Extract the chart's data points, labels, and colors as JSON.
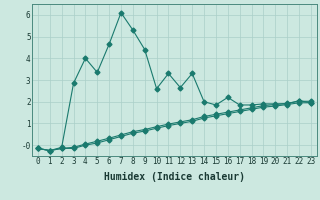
{
  "title": "",
  "xlabel": "Humidex (Indice chaleur)",
  "ylabel": "",
  "line_color": "#1a7a6e",
  "background_color": "#cce8e0",
  "grid_color": "#aacfc8",
  "series1_x": [
    0,
    1,
    2,
    3,
    4,
    5,
    6,
    7,
    8,
    9,
    10,
    11,
    12,
    13,
    14,
    15,
    16,
    17,
    18,
    19,
    20,
    21,
    22,
    23
  ],
  "series1_y": [
    -0.15,
    -0.25,
    -0.1,
    2.85,
    4.0,
    3.35,
    4.65,
    6.1,
    5.3,
    4.4,
    2.6,
    3.3,
    2.65,
    3.3,
    2.0,
    1.85,
    2.2,
    1.85,
    1.85,
    1.9,
    1.9,
    1.9,
    2.05,
    1.95
  ],
  "series2_x": [
    0,
    1,
    2,
    3,
    4,
    5,
    6,
    7,
    8,
    9,
    10,
    11,
    12,
    13,
    14,
    15,
    16,
    17,
    18,
    19,
    20,
    21,
    22,
    23
  ],
  "series2_y": [
    -0.15,
    -0.25,
    -0.15,
    -0.15,
    0.0,
    0.1,
    0.25,
    0.4,
    0.55,
    0.65,
    0.78,
    0.9,
    1.0,
    1.1,
    1.25,
    1.35,
    1.45,
    1.55,
    1.65,
    1.75,
    1.8,
    1.87,
    1.95,
    1.95
  ],
  "series3_x": [
    0,
    1,
    2,
    3,
    4,
    5,
    6,
    7,
    8,
    9,
    10,
    11,
    12,
    13,
    14,
    15,
    16,
    17,
    18,
    19,
    20,
    21,
    22,
    23
  ],
  "series3_y": [
    -0.15,
    -0.25,
    -0.15,
    -0.1,
    0.05,
    0.18,
    0.32,
    0.47,
    0.62,
    0.72,
    0.85,
    0.97,
    1.07,
    1.17,
    1.32,
    1.42,
    1.52,
    1.62,
    1.72,
    1.82,
    1.87,
    1.93,
    2.02,
    2.02
  ],
  "xlim": [
    -0.5,
    23.5
  ],
  "ylim": [
    -0.5,
    6.5
  ],
  "xticks": [
    0,
    1,
    2,
    3,
    4,
    5,
    6,
    7,
    8,
    9,
    10,
    11,
    12,
    13,
    14,
    15,
    16,
    17,
    18,
    19,
    20,
    21,
    22,
    23
  ],
  "yticks": [
    0,
    1,
    2,
    3,
    4,
    5,
    6
  ],
  "ytick_labels": [
    "-0",
    "1",
    "2",
    "3",
    "4",
    "5",
    "6"
  ],
  "xlabel_fontsize": 7,
  "tick_fontsize": 5.5
}
